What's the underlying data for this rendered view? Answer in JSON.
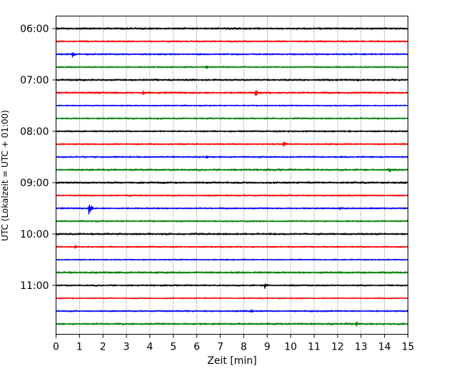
{
  "chart_data": {
    "type": "line",
    "title": "",
    "xlabel": "Zeit  [min]",
    "ylabel": "UTC (Lokalzeit = UTC + 01:00)",
    "xlim": [
      0,
      15
    ],
    "xticks": [
      0,
      1,
      2,
      3,
      4,
      5,
      6,
      7,
      8,
      9,
      10,
      11,
      12,
      13,
      14,
      15
    ],
    "grid": "vertical dotted",
    "line_colors": [
      "#000000",
      "#ff0000",
      "#0000ff",
      "#008000"
    ],
    "yticks": [
      {
        "label": "06:00",
        "trace_index": 0
      },
      {
        "label": "07:00",
        "trace_index": 4
      },
      {
        "label": "08:00",
        "trace_index": 8
      },
      {
        "label": "09:00",
        "trace_index": 12
      },
      {
        "label": "10:00",
        "trace_index": 16
      },
      {
        "label": "11:00",
        "trace_index": 20
      }
    ],
    "traces": [
      {
        "start": "06:00",
        "color": "#000000",
        "amplitude": 3,
        "events": []
      },
      {
        "start": "06:15",
        "color": "#ff0000",
        "amplitude": 2.5,
        "events": []
      },
      {
        "start": "06:30",
        "color": "#0000ff",
        "amplitude": 2.5,
        "events": [
          {
            "t": 0.7,
            "a": 10
          }
        ]
      },
      {
        "start": "06:45",
        "color": "#008000",
        "amplitude": 2.5,
        "events": [
          {
            "t": 6.4,
            "a": 7
          }
        ]
      },
      {
        "start": "07:00",
        "color": "#000000",
        "amplitude": 3,
        "events": []
      },
      {
        "start": "07:15",
        "color": "#ff0000",
        "amplitude": 3,
        "events": [
          {
            "t": 3.7,
            "a": 7
          },
          {
            "t": 8.5,
            "a": 11
          },
          {
            "t": 14.1,
            "a": 5
          }
        ]
      },
      {
        "start": "07:30",
        "color": "#0000ff",
        "amplitude": 2,
        "events": []
      },
      {
        "start": "07:45",
        "color": "#008000",
        "amplitude": 2.5,
        "events": []
      },
      {
        "start": "08:00",
        "color": "#000000",
        "amplitude": 2.5,
        "events": [
          {
            "t": 9.9,
            "a": 4
          },
          {
            "t": 12.5,
            "a": 4
          }
        ]
      },
      {
        "start": "08:15",
        "color": "#ff0000",
        "amplitude": 2.5,
        "events": [
          {
            "t": 9.7,
            "a": 8
          }
        ]
      },
      {
        "start": "08:30",
        "color": "#0000ff",
        "amplitude": 2.5,
        "events": [
          {
            "t": 6.4,
            "a": 5
          }
        ]
      },
      {
        "start": "08:45",
        "color": "#008000",
        "amplitude": 3,
        "events": [
          {
            "t": 14.2,
            "a": 9
          }
        ]
      },
      {
        "start": "09:00",
        "color": "#000000",
        "amplitude": 3,
        "events": [
          {
            "t": 1.3,
            "a": 4
          }
        ]
      },
      {
        "start": "09:15",
        "color": "#ff0000",
        "amplitude": 2.5,
        "events": [
          {
            "t": 6.5,
            "a": 4
          }
        ]
      },
      {
        "start": "09:30",
        "color": "#0000ff",
        "amplitude": 2.5,
        "events": [
          {
            "t": 1.4,
            "a": 18
          },
          {
            "t": 12.1,
            "a": 5
          }
        ]
      },
      {
        "start": "09:45",
        "color": "#008000",
        "amplitude": 2.5,
        "events": []
      },
      {
        "start": "10:00",
        "color": "#000000",
        "amplitude": 3,
        "events": [
          {
            "t": 4.7,
            "a": 4
          }
        ]
      },
      {
        "start": "10:15",
        "color": "#ff0000",
        "amplitude": 2.5,
        "events": [
          {
            "t": 0.8,
            "a": 6
          }
        ]
      },
      {
        "start": "10:30",
        "color": "#0000ff",
        "amplitude": 2,
        "events": []
      },
      {
        "start": "10:45",
        "color": "#008000",
        "amplitude": 3,
        "events": [
          {
            "t": 2.7,
            "a": 4
          }
        ]
      },
      {
        "start": "11:00",
        "color": "#000000",
        "amplitude": 2.5,
        "events": [
          {
            "t": 8.9,
            "a": 9
          }
        ]
      },
      {
        "start": "11:15",
        "color": "#ff0000",
        "amplitude": 2,
        "events": []
      },
      {
        "start": "11:30",
        "color": "#0000ff",
        "amplitude": 2.5,
        "events": [
          {
            "t": 8.3,
            "a": 6
          }
        ]
      },
      {
        "start": "11:45",
        "color": "#008000",
        "amplitude": 3,
        "events": [
          {
            "t": 12.8,
            "a": 8
          },
          {
            "t": 5.9,
            "a": 4
          }
        ]
      }
    ]
  }
}
